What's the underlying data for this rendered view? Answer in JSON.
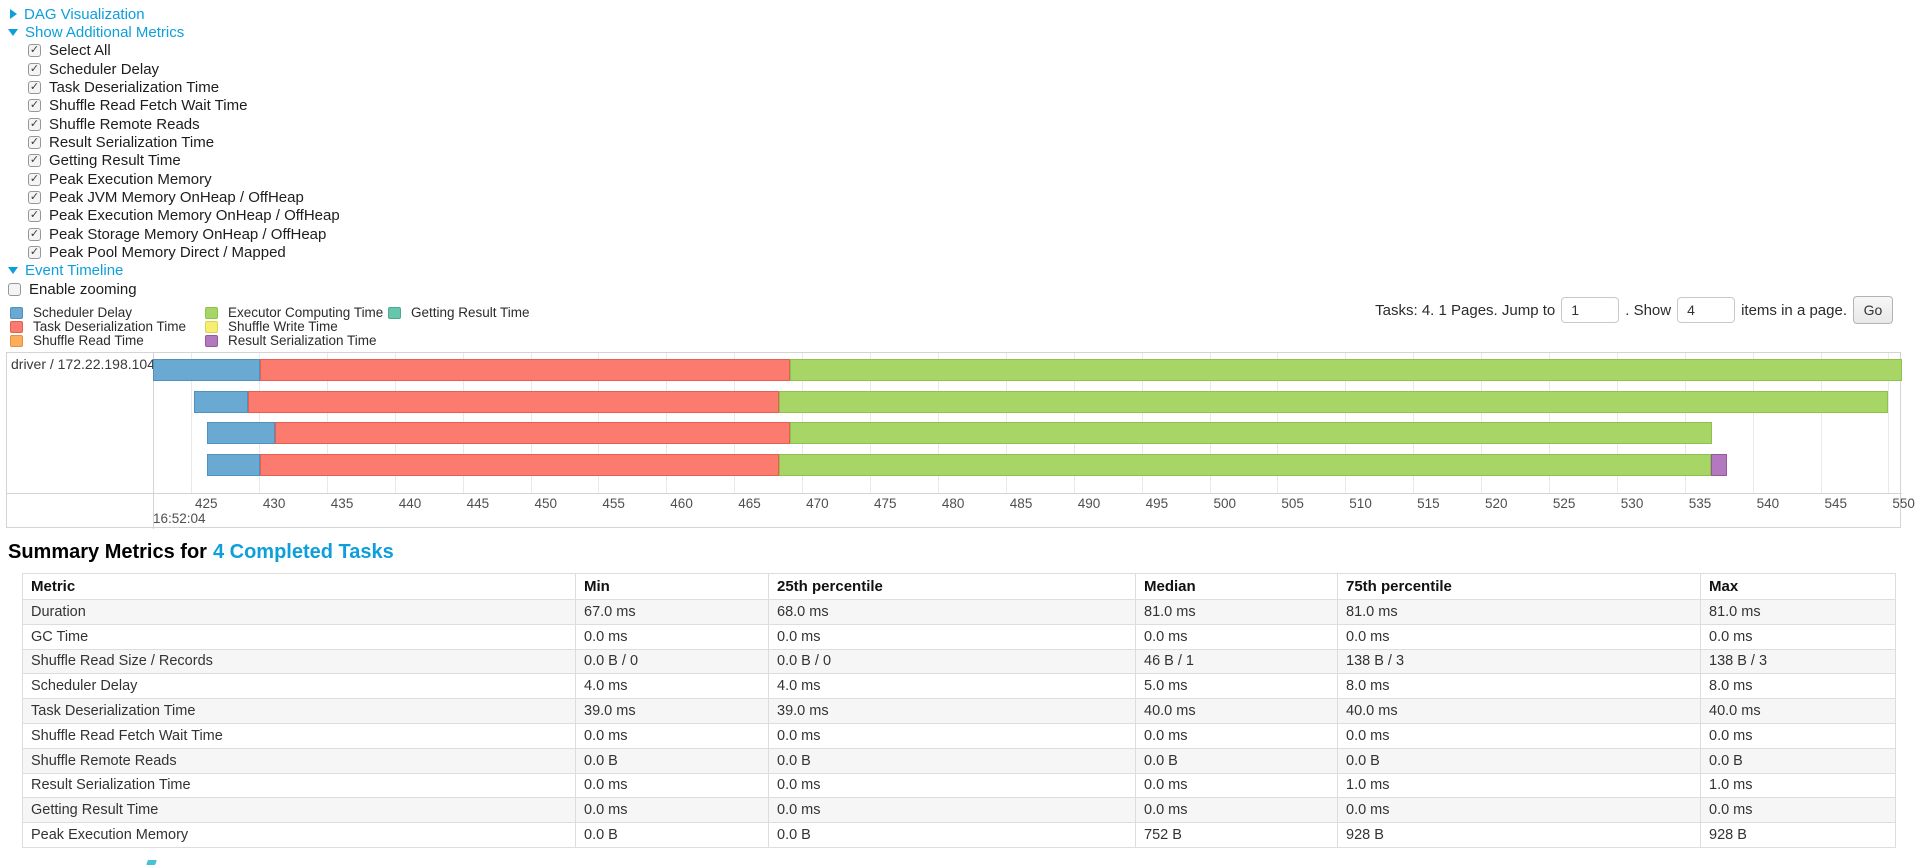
{
  "accent_link_color": "#0D9FDB",
  "sections": {
    "dag": {
      "label": "DAG Visualization",
      "state": "collapsed"
    },
    "metrics": {
      "label": "Show Additional Metrics",
      "state": "expanded",
      "items": [
        {
          "label": "Select All",
          "checked": true
        },
        {
          "label": "Scheduler Delay",
          "checked": true
        },
        {
          "label": "Task Deserialization Time",
          "checked": true
        },
        {
          "label": "Shuffle Read Fetch Wait Time",
          "checked": true
        },
        {
          "label": "Shuffle Remote Reads",
          "checked": true
        },
        {
          "label": "Result Serialization Time",
          "checked": true
        },
        {
          "label": "Getting Result Time",
          "checked": true
        },
        {
          "label": "Peak Execution Memory",
          "checked": true
        },
        {
          "label": "Peak JVM Memory OnHeap / OffHeap",
          "checked": true
        },
        {
          "label": "Peak Execution Memory OnHeap / OffHeap",
          "checked": true
        },
        {
          "label": "Peak Storage Memory OnHeap / OffHeap",
          "checked": true
        },
        {
          "label": "Peak Pool Memory Direct / Mapped",
          "checked": true
        }
      ]
    },
    "timeline": {
      "label": "Event Timeline",
      "state": "expanded",
      "enable_zooming_label": "Enable zooming",
      "enable_zooming_checked": false
    }
  },
  "legend": {
    "columns": [
      [
        "Scheduler Delay",
        "Task Deserialization Time",
        "Shuffle Read Time"
      ],
      [
        "Executor Computing Time",
        "Shuffle Write Time",
        "Result Serialization Time"
      ],
      [
        "Getting Result Time"
      ]
    ]
  },
  "pagination": {
    "tasks_text": "Tasks: 4. 1 Pages. Jump to",
    "jump_value": "1",
    "show_text": ". Show",
    "show_value": "4",
    "items_text": "items in a page.",
    "go_label": "Go"
  },
  "chart_data": {
    "type": "timeline",
    "group": "driver / 172.22.198.104",
    "x_axis": {
      "unit": "ms",
      "domain": [
        422.2,
        551.0
      ],
      "tick_step": 5,
      "ticks": [
        425,
        430,
        435,
        440,
        445,
        450,
        455,
        460,
        465,
        470,
        475,
        480,
        485,
        490,
        495,
        500,
        505,
        510,
        515,
        520,
        525,
        530,
        535,
        540,
        545,
        550
      ],
      "time_label": "16:52:04"
    },
    "colors": {
      "Scheduler Delay": {
        "fill": "#6AAAD2",
        "border": "#4E91BE"
      },
      "Task Deserialization Time": {
        "fill": "#FB7C6E",
        "border": "#E55F50"
      },
      "Shuffle Read Time": {
        "fill": "#FCAD5C",
        "border": "#E2913E"
      },
      "Executor Computing Time": {
        "fill": "#A7D667",
        "border": "#8CC34B"
      },
      "Shuffle Write Time": {
        "fill": "#F6EE70",
        "border": "#DCD455"
      },
      "Result Serialization Time": {
        "fill": "#B379BE",
        "border": "#98589F"
      },
      "Getting Result Time": {
        "fill": "#67C5AB",
        "border": "#4BAA8F"
      }
    },
    "tasks": [
      {
        "segments": [
          {
            "metric": "Scheduler Delay",
            "start": 422.2,
            "end": 430.1
          },
          {
            "metric": "Task Deserialization Time",
            "start": 430.1,
            "end": 469.1
          },
          {
            "metric": "Executor Computing Time",
            "start": 469.1,
            "end": 551.0
          }
        ]
      },
      {
        "segments": [
          {
            "metric": "Scheduler Delay",
            "start": 425.2,
            "end": 429.2
          },
          {
            "metric": "Task Deserialization Time",
            "start": 429.2,
            "end": 468.3
          },
          {
            "metric": "Executor Computing Time",
            "start": 468.3,
            "end": 550.0
          }
        ]
      },
      {
        "segments": [
          {
            "metric": "Scheduler Delay",
            "start": 426.2,
            "end": 431.2
          },
          {
            "metric": "Task Deserialization Time",
            "start": 431.2,
            "end": 469.1
          },
          {
            "metric": "Executor Computing Time",
            "start": 469.1,
            "end": 537.0
          }
        ]
      },
      {
        "segments": [
          {
            "metric": "Scheduler Delay",
            "start": 426.2,
            "end": 430.1
          },
          {
            "metric": "Task Deserialization Time",
            "start": 430.1,
            "end": 468.3
          },
          {
            "metric": "Executor Computing Time",
            "start": 468.3,
            "end": 536.9
          },
          {
            "metric": "Result Serialization Time",
            "start": 536.9,
            "end": 538.1
          }
        ]
      }
    ]
  },
  "summary": {
    "heading_prefix": "Summary Metrics for",
    "heading_link": "4 Completed Tasks",
    "table": {
      "columns": [
        "Metric",
        "Min",
        "25th percentile",
        "Median",
        "75th percentile",
        "Max"
      ],
      "rows": [
        {
          "metric": "Duration",
          "values": [
            "67.0 ms",
            "68.0 ms",
            "81.0 ms",
            "81.0 ms",
            "81.0 ms"
          ]
        },
        {
          "metric": "GC Time",
          "values": [
            "0.0 ms",
            "0.0 ms",
            "0.0 ms",
            "0.0 ms",
            "0.0 ms"
          ]
        },
        {
          "metric": "Shuffle Read Size / Records",
          "values": [
            "0.0 B / 0",
            "0.0 B / 0",
            "46 B / 1",
            "138 B / 3",
            "138 B / 3"
          ]
        },
        {
          "metric": "Scheduler Delay",
          "values": [
            "4.0 ms",
            "4.0 ms",
            "5.0 ms",
            "8.0 ms",
            "8.0 ms"
          ]
        },
        {
          "metric": "Task Deserialization Time",
          "values": [
            "39.0 ms",
            "39.0 ms",
            "40.0 ms",
            "40.0 ms",
            "40.0 ms"
          ]
        },
        {
          "metric": "Shuffle Read Fetch Wait Time",
          "values": [
            "0.0 ms",
            "0.0 ms",
            "0.0 ms",
            "0.0 ms",
            "0.0 ms"
          ]
        },
        {
          "metric": "Shuffle Remote Reads",
          "values": [
            "0.0 B",
            "0.0 B",
            "0.0 B",
            "0.0 B",
            "0.0 B"
          ]
        },
        {
          "metric": "Result Serialization Time",
          "values": [
            "0.0 ms",
            "0.0 ms",
            "0.0 ms",
            "1.0 ms",
            "1.0 ms"
          ]
        },
        {
          "metric": "Getting Result Time",
          "values": [
            "0.0 ms",
            "0.0 ms",
            "0.0 ms",
            "0.0 ms",
            "0.0 ms"
          ]
        },
        {
          "metric": "Peak Execution Memory",
          "values": [
            "0.0 B",
            "0.0 B",
            "752 B",
            "928 B",
            "928 B"
          ]
        }
      ]
    }
  }
}
